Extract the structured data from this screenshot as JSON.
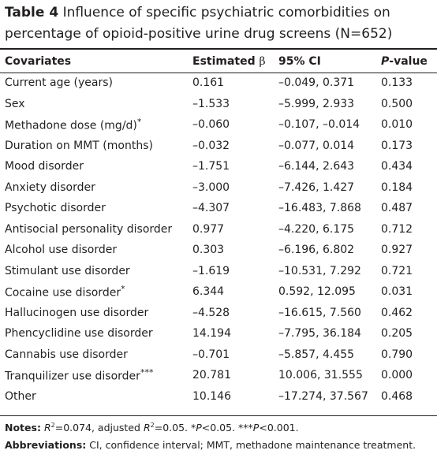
{
  "caption": {
    "label": "Table 4",
    "text": "Influence of specific psychiatric comorbidities on percentage of opioid-positive urine drug screens (N=652)"
  },
  "header": {
    "covariates": "Covariates",
    "estimated": "Estimated",
    "beta": "β",
    "ci": "95% CI",
    "p_letter": "P",
    "p_suffix": "-value"
  },
  "rows": [
    {
      "covariate": "Current age (years)",
      "mark": "",
      "beta": "0.161",
      "ci": "–0.049, 0.371",
      "p": "0.133"
    },
    {
      "covariate": "Sex",
      "mark": "",
      "beta": "–1.533",
      "ci": "–5.999, 2.933",
      "p": "0.500"
    },
    {
      "covariate": "Methadone dose (mg/d)",
      "mark": "*",
      "beta": "–0.060",
      "ci": "–0.107, –0.014",
      "p": "0.010"
    },
    {
      "covariate": "Duration on MMT (months)",
      "mark": "",
      "beta": "–0.032",
      "ci": "–0.077, 0.014",
      "p": "0.173"
    },
    {
      "covariate": "Mood disorder",
      "mark": "",
      "beta": "–1.751",
      "ci": "–6.144, 2.643",
      "p": "0.434"
    },
    {
      "covariate": "Anxiety disorder",
      "mark": "",
      "beta": "–3.000",
      "ci": "–7.426, 1.427",
      "p": "0.184"
    },
    {
      "covariate": "Psychotic disorder",
      "mark": "",
      "beta": "–4.307",
      "ci": "–16.483, 7.868",
      "p": "0.487"
    },
    {
      "covariate": "Antisocial personality disorder",
      "mark": "",
      "beta": "0.977",
      "ci": "–4.220, 6.175",
      "p": "0.712"
    },
    {
      "covariate": "Alcohol use disorder",
      "mark": "",
      "beta": "0.303",
      "ci": "–6.196, 6.802",
      "p": "0.927"
    },
    {
      "covariate": "Stimulant use disorder",
      "mark": "",
      "beta": "–1.619",
      "ci": "–10.531, 7.292",
      "p": "0.721"
    },
    {
      "covariate": "Cocaine use disorder",
      "mark": "*",
      "beta": "6.344",
      "ci": "0.592, 12.095",
      "p": "0.031"
    },
    {
      "covariate": "Hallucinogen use disorder",
      "mark": "",
      "beta": "–4.528",
      "ci": "–16.615, 7.560",
      "p": "0.462"
    },
    {
      "covariate": "Phencyclidine use disorder",
      "mark": "",
      "beta": "14.194",
      "ci": "–7.795, 36.184",
      "p": "0.205"
    },
    {
      "covariate": "Cannabis use disorder",
      "mark": "",
      "beta": "–0.701",
      "ci": "–5.857, 4.455",
      "p": "0.790"
    },
    {
      "covariate": "Tranquilizer use disorder",
      "mark": "***",
      "beta": "20.781",
      "ci": "10.006, 31.555",
      "p": "0.000"
    },
    {
      "covariate": "Other",
      "mark": "",
      "beta": "10.146",
      "ci": "–17.274, 37.567",
      "p": "0.468"
    }
  ],
  "notes": {
    "label": "Notes:",
    "r2_sym": "R",
    "r2_text": "=0.074, adjusted ",
    "adj_r2_sym": "R",
    "adj_r2_text": "=0.05. *",
    "p1": "P",
    "p1_text": "<0.05. ***",
    "p2": "P",
    "p2_text": "<0.001."
  },
  "abbreviations": {
    "label": "Abbreviations:",
    "text": "CI, confidence interval; MMT, methadone maintenance treatment."
  }
}
